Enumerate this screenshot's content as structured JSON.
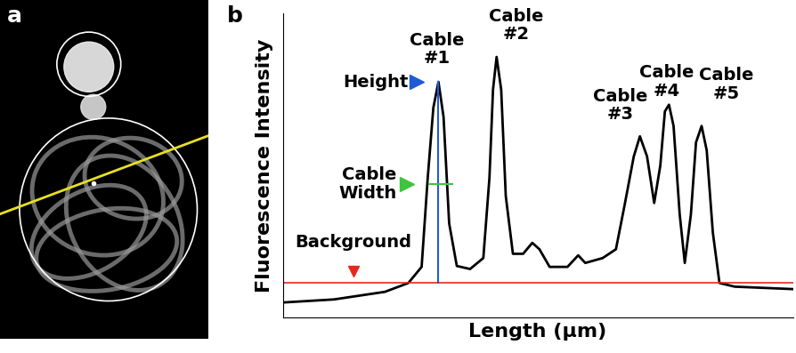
{
  "chart_data": {
    "type": "line",
    "panel_labels": [
      "a",
      "b"
    ],
    "x_label": "Length (μm)",
    "y_label": "Fluorescence Intensity",
    "x": [
      0,
      10,
      20,
      24.6,
      27.2,
      28.4,
      29.5,
      30.5,
      31.5,
      32.6,
      34.1,
      36.7,
      39.3,
      40.5,
      41.2,
      41.9,
      42.8,
      43.7,
      45.1,
      47.1,
      48.9,
      50.3,
      52.3,
      55.8,
      57.9,
      59.3,
      62.7,
      65.3,
      67,
      68.8,
      70,
      71.4,
      72.8,
      74,
      74.9,
      75.7,
      76.6,
      77.8,
      78.8,
      80,
      81,
      82.1,
      83.1,
      84.3,
      85.6,
      88.6,
      100
    ],
    "values": [
      5,
      6,
      8.5,
      11.4,
      16.7,
      46,
      69,
      77.5,
      66,
      31,
      17,
      16,
      19.6,
      46,
      75,
      85.7,
      75,
      40,
      21,
      21,
      24.6,
      22.5,
      16.7,
      16.7,
      20.5,
      18,
      19.6,
      22.5,
      37,
      53,
      59.6,
      53,
      37.7,
      50,
      67.8,
      70,
      63,
      34,
      18,
      34,
      57.6,
      63,
      55,
      28,
      11.4,
      10.2,
      9.4
    ],
    "color": "#000000",
    "xlim": [
      0,
      100
    ],
    "ylim": [
      0,
      100
    ],
    "xticks": [],
    "yticks": [],
    "tick_labels": false,
    "annotations": [
      {
        "text": "Cable\n#1",
        "x": 30.5
      },
      {
        "text": "Cable\n#2",
        "x": 41.9
      },
      {
        "text": "Cable\n#3",
        "x": 70
      },
      {
        "text": "Cable\n#4",
        "x": 75.7
      },
      {
        "text": "Cable\n#5",
        "x": 82.1
      }
    ],
    "height": {
      "text": "Height",
      "x": 30.5,
      "y": 77.5,
      "color": "#1f5bd6"
    },
    "cable_width": {
      "text": "Cable\nWidth",
      "x": [
        28.6,
        33.3
      ],
      "y": 43.9,
      "color": "#3ec43e"
    },
    "background": {
      "text": "Background",
      "y": 11.4,
      "color": "#e8281e"
    }
  }
}
